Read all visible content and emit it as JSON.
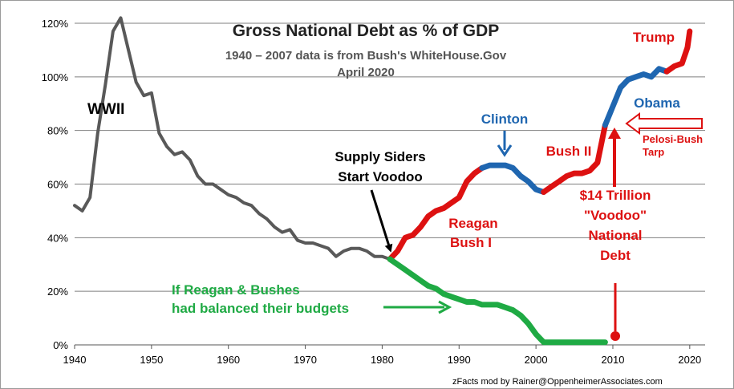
{
  "chart_data": {
    "type": "line",
    "title": "Gross National Debt  as % of GDP",
    "subtitle": "1940 – 2007 data is from Bush's WhiteHouse.Gov",
    "date_note": "April 2020",
    "credit": "zFacts mod by Rainer@OppenheimerAssociates.com",
    "xlim": [
      1940,
      2022
    ],
    "ylim": [
      0,
      120
    ],
    "x_ticks": [
      1940,
      1950,
      1960,
      1970,
      1980,
      1990,
      2000,
      2010,
      2020
    ],
    "x_tick_labels": [
      "1940",
      "1950",
      "1960",
      "1970",
      "1980",
      "1990",
      "2000",
      "2010",
      "2020"
    ],
    "y_ticks": [
      0,
      20,
      40,
      60,
      80,
      100,
      120
    ],
    "y_tick_labels": [
      "0%",
      "20%",
      "40%",
      "60%",
      "80%",
      "100%",
      "120%"
    ],
    "grid": "horizontal",
    "series": [
      {
        "color": "#595959",
        "x": [
          1940,
          1941,
          1942,
          1943,
          1944,
          1945,
          1946,
          1947,
          1948,
          1949,
          1950,
          1951,
          1952,
          1953,
          1954,
          1955,
          1956,
          1957,
          1958,
          1959,
          1960,
          1961,
          1962,
          1963,
          1964,
          1965,
          1966,
          1967,
          1968,
          1969,
          1970,
          1971,
          1972,
          1973,
          1974,
          1975,
          1976,
          1977,
          1978,
          1979,
          1980,
          1981
        ],
        "y": [
          52,
          50,
          55,
          79,
          97,
          117,
          122,
          110,
          98,
          93,
          94,
          79,
          74,
          71,
          72,
          69,
          63,
          60,
          60,
          58,
          56,
          55,
          53,
          52,
          49,
          47,
          44,
          42,
          43,
          39,
          38,
          38,
          37,
          36,
          33,
          35,
          36,
          36,
          35,
          33,
          33,
          32
        ]
      },
      {
        "color": "#dd1111",
        "x": [
          1981,
          1982,
          1983,
          1984,
          1985,
          1986,
          1987,
          1988,
          1989,
          1990,
          1991,
          1992,
          1993
        ],
        "y": [
          32,
          35,
          40,
          41,
          44,
          48,
          50,
          51,
          53,
          55,
          61,
          64,
          66
        ]
      },
      {
        "color": "#1f66b0",
        "x": [
          1993,
          1994,
          1995,
          1996,
          1997,
          1998,
          1999,
          2000,
          2001
        ],
        "y": [
          66,
          67,
          67,
          67,
          66,
          63,
          61,
          58,
          57
        ]
      },
      {
        "color": "#dd1111",
        "x": [
          2001,
          2002,
          2003,
          2004,
          2005,
          2006,
          2007,
          2008,
          2009
        ],
        "y": [
          57,
          59,
          61,
          63,
          64,
          64,
          65,
          68,
          82
        ]
      },
      {
        "color": "#1f66b0",
        "x": [
          2009,
          2010,
          2011,
          2012,
          2013,
          2014,
          2015,
          2016,
          2017
        ],
        "y": [
          82,
          89,
          96,
          99,
          100,
          101,
          100,
          103,
          102
        ]
      },
      {
        "color": "#dd1111",
        "x": [
          2017,
          2018,
          2019,
          2019.7,
          2020
        ],
        "y": [
          102,
          104,
          105,
          111,
          117
        ]
      },
      {
        "name": "If Reagan & Bushes had balanced their budgets",
        "color": "#1faa44",
        "x": [
          1981,
          1982,
          1983,
          1984,
          1985,
          1986,
          1987,
          1988,
          1989,
          1990,
          1991,
          1992,
          1993,
          1994,
          1995,
          1996,
          1997,
          1998,
          1999,
          2000,
          2001,
          2002,
          2003,
          2004,
          2005,
          2006,
          2007,
          2008,
          2009
        ],
        "y": [
          32,
          30,
          28,
          26,
          24,
          22,
          21,
          19,
          18,
          17,
          16,
          16,
          15,
          15,
          15,
          14,
          13,
          11,
          8,
          4,
          1,
          1,
          1,
          1,
          1,
          1,
          1,
          1,
          1
        ]
      }
    ],
    "annotations": {
      "wwii": "WWII",
      "supply_1": "Supply Siders",
      "supply_2": "Start Voodoo",
      "clinton": "Clinton",
      "reagan_1": "Reagan",
      "reagan_2": "Bush I",
      "bush2": "Bush II",
      "trump": "Trump",
      "obama": "Obama",
      "tarp_1": "Pelosi-Bush",
      "tarp_2": "Tarp",
      "debt_1": "$14 Trillion",
      "debt_2": "\"Voodoo\"",
      "debt_3": "National",
      "debt_4": "Debt",
      "balanced_1": "If Reagan & Bushes",
      "balanced_2": "had balanced their budgets"
    },
    "colors": {
      "grid": "#7f7f7f",
      "annotation_red": "#dd1111",
      "annotation_blue": "#1f66b0",
      "annotation_green": "#1faa44",
      "annotation_black": "#000000"
    }
  }
}
